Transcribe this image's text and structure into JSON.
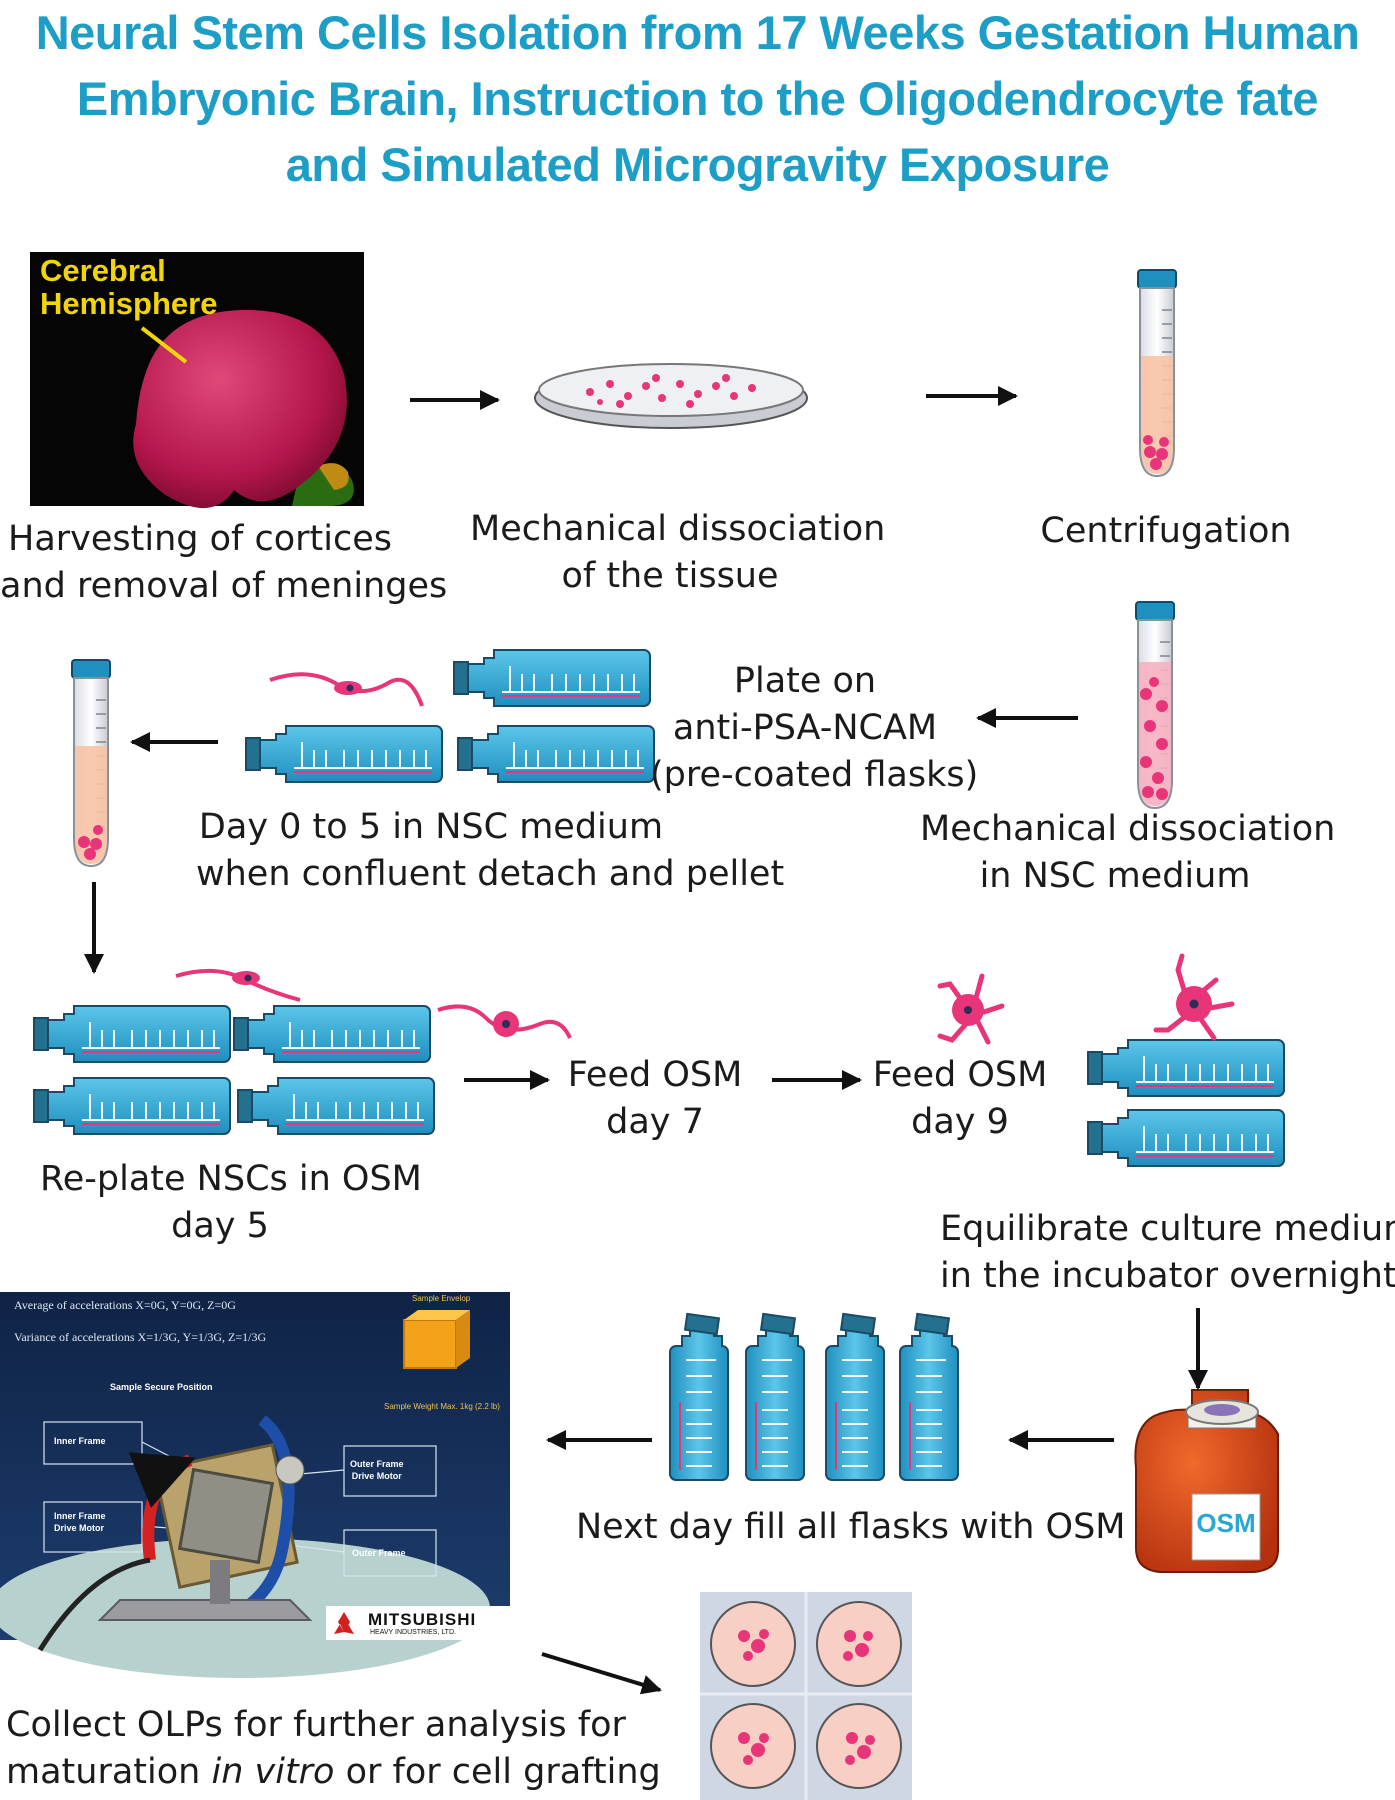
{
  "title": {
    "line1": "Neural Stem Cells Isolation from 17 Weeks Gestation Human",
    "line2": "Embryonic Brain, Instruction to the Oligodendrocyte fate",
    "line3": "and Simulated Microgravity Exposure"
  },
  "steps": {
    "harvest": {
      "l1": "Harvesting of cortices",
      "l2": "and removal of meninges",
      "image_label_l1": "Cerebral",
      "image_label_l2": "Hemisphere"
    },
    "mech1": {
      "l1": "Mechanical dissociation",
      "l2": "of the tissue"
    },
    "centrifugation": {
      "l1": "Centrifugation"
    },
    "mech2": {
      "l1": "Mechanical dissociation",
      "l2": "in NSC medium"
    },
    "plate": {
      "l1": "Plate on",
      "l2": "anti-PSA-NCAM",
      "l3": "(pre-coated flasks)"
    },
    "day0": {
      "l1": "Day 0 to 5 in NSC medium",
      "l2": "when confluent detach and pellet"
    },
    "replate": {
      "l1": "Re-plate NSCs in OSM",
      "l2": "day 5"
    },
    "feed7": {
      "l1": "Feed OSM",
      "l2": "day 7"
    },
    "feed9": {
      "l1": "Feed OSM",
      "l2": "day 9"
    },
    "equil": {
      "l1": "Equilibrate culture medium",
      "l2": "in the incubator overnight"
    },
    "nextday": {
      "l1": "Next day fill all flasks with OSM"
    },
    "collect": {
      "l1": "Collect OLPs for further analysis for",
      "l2_pre": "maturation ",
      "l2_em": "in vitro",
      "l2_post": " or for cell grafting"
    }
  },
  "osm_bottle": {
    "label": "OSM"
  },
  "clinostat": {
    "avg": "Average of accelerations  X=0G, Y=0G, Z=0G",
    "var": "Variance of accelerations  X=1/3G, Y=1/3G, Z=1/3G",
    "sample_envelop": "Sample Envelop",
    "sample_weight": "Sample Weight Max. 1kg (2.2 lb)",
    "secure": "Sample Secure Position",
    "inner_frame": "Inner Frame",
    "inner_motor_l1": "Inner Frame",
    "inner_motor_l2": "Drive Motor",
    "outer_motor_l1": "Outer Frame",
    "outer_motor_l2": "Drive Motor",
    "outer_frame": "Outer Frame",
    "brand": "MITSUBISHI",
    "brand_sub": "HEAVY INDUSTRIES, LTD."
  },
  "colors": {
    "title": "#1c9ec7",
    "flask": "#29a7d4",
    "cells": "#e8357a",
    "arrow": "#111111"
  }
}
